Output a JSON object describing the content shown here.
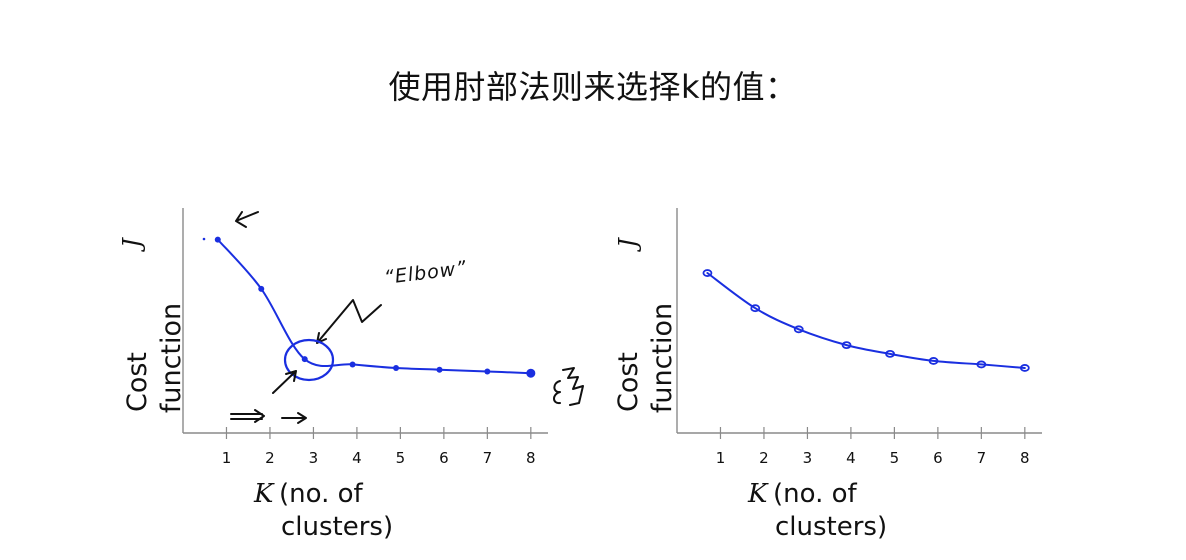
{
  "title": "使用肘部法则来选择k的值：",
  "chart_data": [
    {
      "type": "line",
      "x": [
        0.8,
        1.8,
        2.8,
        3.9,
        4.9,
        5.9,
        7.0,
        8.0
      ],
      "values": [
        4.6,
        3.2,
        1.2,
        1.05,
        0.95,
        0.9,
        0.85,
        0.8
      ],
      "xticks": [
        "1",
        "2",
        "3",
        "4",
        "5",
        "6",
        "7",
        "8"
      ],
      "xlim": [
        0,
        9.2
      ],
      "ylim": [
        -0.9,
        5.5
      ],
      "ylabel_line1": "Cost",
      "ylabel_line2": "function",
      "ysymbol": "J",
      "xsymbol": "K",
      "xlabel_line1": "(no. of",
      "xlabel_line2": "clusters)",
      "annotation": "“Elbow”"
    },
    {
      "type": "line",
      "x": [
        0.7,
        1.8,
        2.8,
        3.9,
        4.9,
        5.9,
        7.0,
        8.0
      ],
      "values": [
        3.65,
        2.65,
        2.05,
        1.6,
        1.35,
        1.15,
        1.05,
        0.95
      ],
      "xticks": [
        "1",
        "2",
        "3",
        "4",
        "5",
        "6",
        "7",
        "8"
      ],
      "xlim": [
        0,
        9.2
      ],
      "ylim": [
        -0.9,
        5.5
      ],
      "ylabel_line1": "Cost",
      "ylabel_line2": "function",
      "ysymbol": "J",
      "xsymbol": "K",
      "xlabel_line1": "(no. of",
      "xlabel_line2": "clusters)"
    }
  ]
}
